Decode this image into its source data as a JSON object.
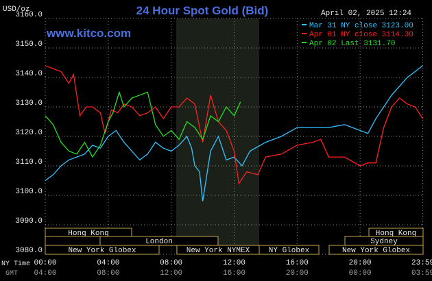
{
  "chart_data": {
    "type": "line",
    "title": "24 Hour Spot Gold (Bid)",
    "subtitle": "www.kitco.com",
    "y_label": "USD/oz",
    "timestamp": "April 02, 2025 12:24",
    "x_label": "NY Time",
    "x2_label": "GMT",
    "xlim": [
      0,
      24
    ],
    "xticks": [
      {
        "value": 0,
        "label": "00:00"
      },
      {
        "value": 4,
        "label": "04:00"
      },
      {
        "value": 8,
        "label": "08:00"
      },
      {
        "value": 12,
        "label": "12:00"
      },
      {
        "value": 16,
        "label": "16:00"
      },
      {
        "value": 20,
        "label": "20:00"
      },
      {
        "value": 23.98,
        "label": "23:59"
      }
    ],
    "x2tick_labels": [
      "04:00",
      "08:00",
      "12:00",
      "16:00",
      "20:00",
      "00:00",
      "03:59"
    ],
    "ylim": [
      3080,
      3160
    ],
    "yticks": [
      {
        "value": 3080,
        "label": "3080.0"
      },
      {
        "value": 3090,
        "label": "3090.0"
      },
      {
        "value": 3100,
        "label": "3100.0"
      },
      {
        "value": 3110,
        "label": "3110.0"
      },
      {
        "value": 3120,
        "label": "3120.0"
      },
      {
        "value": 3130,
        "label": "3130.0"
      },
      {
        "value": 3140,
        "label": "3140.0"
      },
      {
        "value": 3150,
        "label": "3150.0"
      },
      {
        "value": 3160,
        "label": "3160.0"
      }
    ],
    "grid": true,
    "sessions": [
      "Hong Kong",
      "London",
      "New York Globex",
      "New York NYMEX",
      "NY Globex",
      "Hong Kong",
      "Sydney",
      "New York Globex"
    ],
    "series": [
      {
        "name": "Mar 31 NY close 3123.00",
        "color": "#33c4ff",
        "x": [
          0,
          0.5,
          1,
          1.5,
          2,
          2.5,
          3,
          3.5,
          4,
          4.5,
          5,
          5.5,
          6,
          6.5,
          7,
          7.5,
          8,
          8.5,
          9,
          9.3,
          9.5,
          9.8,
          10,
          10.5,
          11,
          11.5,
          12,
          12.5,
          13,
          14,
          15,
          16,
          17,
          18,
          19,
          20,
          20.5,
          21,
          21.5,
          22,
          22.5,
          23,
          23.5,
          23.98
        ],
        "values": [
          3105,
          3107,
          3110,
          3112,
          3113,
          3114,
          3117,
          3116,
          3120,
          3122,
          3118,
          3115,
          3112,
          3114,
          3118,
          3116,
          3115,
          3117,
          3120,
          3116,
          3110,
          3108,
          3098,
          3115,
          3120,
          3112,
          3113,
          3110,
          3115,
          3118,
          3120,
          3123,
          3123,
          3123,
          3124,
          3122,
          3121,
          3126,
          3130,
          3134,
          3137,
          3140,
          3142,
          3144
        ]
      },
      {
        "name": "Apr 01 NY close 3114.30",
        "color": "#ff2020",
        "x": [
          0,
          0.5,
          1,
          1.5,
          1.8,
          2.2,
          2.6,
          3,
          3.5,
          3.8,
          4.2,
          4.6,
          5,
          5.5,
          6,
          6.5,
          7,
          7.5,
          8,
          8.5,
          9,
          9.5,
          10,
          10.5,
          11,
          11.5,
          12,
          12.3,
          12.8,
          13.5,
          14,
          15,
          16,
          17,
          17.5,
          18,
          19,
          20,
          20.5,
          21,
          21.5,
          22,
          22.5,
          23,
          23.5,
          23.98
        ],
        "values": [
          3144,
          3143,
          3142,
          3138,
          3141,
          3127,
          3130,
          3130,
          3128,
          3121,
          3129,
          3128,
          3131,
          3130,
          3127,
          3128,
          3130,
          3126,
          3130,
          3130,
          3133,
          3131,
          3118,
          3134,
          3125,
          3122,
          3115,
          3104,
          3108,
          3107,
          3113,
          3114,
          3117,
          3118,
          3119,
          3113,
          3113,
          3110,
          3111,
          3111,
          3123,
          3130,
          3133,
          3131,
          3130,
          3126
        ]
      },
      {
        "name": "Apr 02 Last 3131.70",
        "color": "#22e022",
        "x": [
          0,
          0.5,
          1,
          1.5,
          2,
          2.5,
          3,
          3.5,
          4,
          4.3,
          4.7,
          5,
          5.5,
          6,
          6.5,
          7,
          7.5,
          8,
          8.5,
          9,
          9.5,
          10,
          10.5,
          11,
          11.5,
          12,
          12.4
        ],
        "values": [
          3127,
          3124,
          3118,
          3115,
          3114,
          3118,
          3113,
          3117,
          3125,
          3128,
          3135,
          3130,
          3133,
          3134,
          3135,
          3124,
          3120,
          3122,
          3119,
          3125,
          3123,
          3119,
          3127,
          3125,
          3130,
          3127,
          3131.7
        ]
      }
    ]
  }
}
